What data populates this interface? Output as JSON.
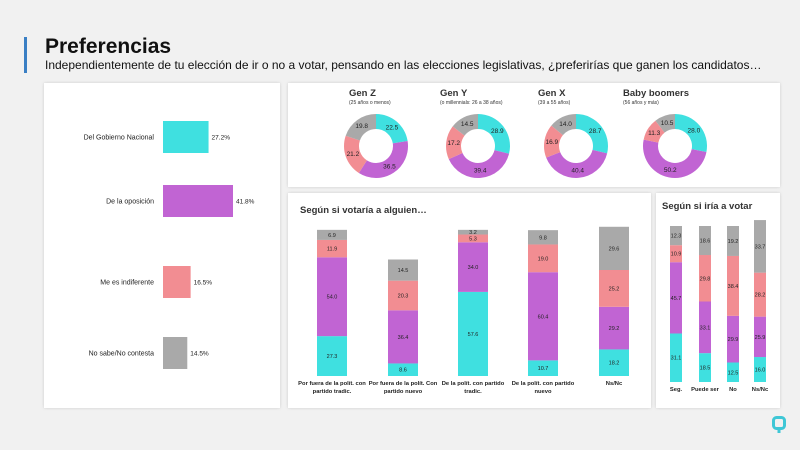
{
  "title": "Preferencias",
  "subtitle": "Independientemente de tu elección de ir o no a votar, pensando en las elecciones legislativas, ¿preferirías que ganen los candidatos…",
  "colors": {
    "accent": "#3a7fc4",
    "gobierno": "#3fe0e0",
    "oposicion": "#c164d3",
    "indiferente": "#f28d92",
    "nosabe": "#a9a9a9",
    "logo": "#3fc7d6"
  },
  "chart_data": [
    {
      "id": "total",
      "type": "bar",
      "orientation": "horizontal",
      "categories": [
        "Del Gobierno Nacional",
        "De la oposición",
        "Me es indiferente",
        "No sabe/No contesta"
      ],
      "values": [
        27.2,
        41.8,
        16.5,
        14.5
      ],
      "value_labels": [
        "27.2%",
        "41.8%",
        "16.5%",
        "14.5%"
      ],
      "colors": [
        "#3fe0e0",
        "#c164d3",
        "#f28d92",
        "#a9a9a9"
      ],
      "xlim": [
        0,
        60
      ]
    },
    {
      "id": "generaciones",
      "type": "pie",
      "style": "donut",
      "slice_order": [
        "Gobierno",
        "Oposición",
        "Indiferente",
        "No sabe"
      ],
      "colors": [
        "#3fe0e0",
        "#c164d3",
        "#f28d92",
        "#a9a9a9"
      ],
      "donuts": [
        {
          "title": "Gen Z",
          "subtitle": "(25 años o menos)",
          "values": [
            22.5,
            36.5,
            21.2,
            19.8
          ],
          "labels": [
            "22.5",
            "36.5",
            "21.2",
            "19.8"
          ]
        },
        {
          "title": "Gen Y",
          "subtitle": "(o millennials: 26 a 38 años)",
          "values": [
            28.9,
            39.4,
            17.2,
            14.5
          ],
          "labels": [
            "28.9",
            "39.4",
            "17.2",
            "14.5"
          ]
        },
        {
          "title": "Gen X",
          "subtitle": "(39 a 55 años)",
          "values": [
            28.7,
            40.4,
            16.9,
            14.0
          ],
          "labels": [
            "28.7",
            "40.4",
            "16.9",
            "14.0"
          ]
        },
        {
          "title": "Baby boomers",
          "subtitle": "(56 años y más)",
          "values": [
            28.0,
            50.2,
            11.3,
            10.5
          ],
          "labels": [
            "28.0",
            "50.2",
            "11.3",
            "10.5"
          ]
        }
      ]
    },
    {
      "id": "votaria",
      "type": "bar",
      "stacked": true,
      "title": "Según si votaría a alguien…",
      "categories": [
        "Por fuera de la polít. con partido tradic.",
        "Por fuera de la polít. Con partido nuevo",
        "De la polít. con partido tradic.",
        "De la polít. con partido nuevo",
        "Ns/Nc"
      ],
      "series": [
        {
          "name": "Gobierno",
          "color": "#3fe0e0",
          "values": [
            27.3,
            8.6,
            57.6,
            10.7,
            18.2
          ],
          "labels": [
            "27.3",
            "8.6",
            "57.6",
            "10.7",
            "18.2"
          ]
        },
        {
          "name": "Oposición",
          "color": "#c164d3",
          "values": [
            54.0,
            36.4,
            34.0,
            60.4,
            29.2
          ],
          "labels": [
            "54.0",
            "36.4",
            "34.0",
            "60.4",
            "29.2"
          ]
        },
        {
          "name": "Indiferente",
          "color": "#f28d92",
          "values": [
            11.9,
            20.3,
            5.3,
            19.0,
            25.2
          ],
          "labels": [
            "11.9",
            "20.3",
            "5.3",
            "19.0",
            "25.2"
          ]
        },
        {
          "name": "No sabe",
          "color": "#a9a9a9",
          "values": [
            6.9,
            14.5,
            3.2,
            9.8,
            29.6
          ],
          "labels": [
            "6.9",
            "14.5",
            "3.2",
            "9.8",
            "29.6"
          ]
        }
      ],
      "ylim": [
        0,
        100
      ]
    },
    {
      "id": "iria",
      "type": "bar",
      "stacked": true,
      "title": "Según si iría a votar",
      "categories": [
        "Seg.",
        "Puede ser",
        "No",
        "Ns/Nc"
      ],
      "series": [
        {
          "name": "Gobierno",
          "color": "#3fe0e0",
          "values": [
            31.1,
            18.5,
            12.5,
            16.0
          ],
          "labels": [
            "31.1",
            "18.5",
            "12.5",
            "16.0"
          ]
        },
        {
          "name": "Oposición",
          "color": "#c164d3",
          "values": [
            45.7,
            33.1,
            29.9,
            25.9
          ],
          "labels": [
            "45.7",
            "33.1",
            "29.9",
            "25.9"
          ]
        },
        {
          "name": "Indiferente",
          "color": "#f28d92",
          "values": [
            10.9,
            29.8,
            38.4,
            28.2
          ],
          "labels": [
            "10.9",
            "29.8",
            "38.4",
            "28.2"
          ]
        },
        {
          "name": "No sabe",
          "color": "#a9a9a9",
          "values": [
            12.3,
            18.6,
            19.2,
            33.7
          ],
          "labels": [
            "12.3",
            "18.6",
            "19.2",
            "33.7"
          ]
        }
      ],
      "ylim": [
        0,
        100
      ]
    }
  ]
}
